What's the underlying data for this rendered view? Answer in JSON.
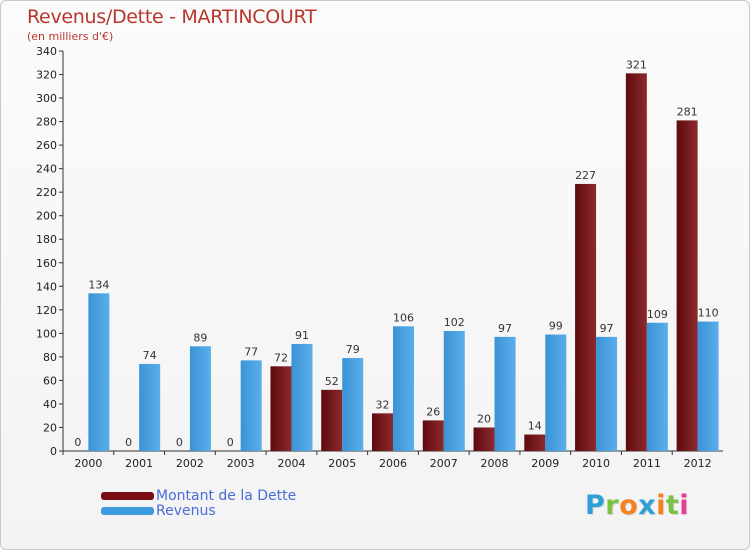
{
  "title": "Revenus/Dette - MARTINCOURT",
  "subtitle": "(en milliers d'€)",
  "legend": {
    "debt_label": "Montant de la Dette",
    "revenue_label": "Revenus"
  },
  "logo": {
    "text": "Proxiti",
    "colors": [
      "#2f9fd8",
      "#7cc242",
      "#f58220",
      "#2f9fd8",
      "#f58220",
      "#7cc242",
      "#e63c96"
    ]
  },
  "colors": {
    "debt": "#7a0d12",
    "revenue": "#3d9be0",
    "title": "#b8372c"
  },
  "chart_data": {
    "type": "bar",
    "categories": [
      "2000",
      "2001",
      "2002",
      "2003",
      "2004",
      "2005",
      "2006",
      "2007",
      "2008",
      "2009",
      "2010",
      "2011",
      "2012"
    ],
    "series": [
      {
        "name": "Montant de la Dette",
        "values": [
          0,
          0,
          0,
          0,
          72,
          52,
          32,
          26,
          20,
          14,
          227,
          321,
          281
        ]
      },
      {
        "name": "Revenus",
        "values": [
          134,
          74,
          89,
          77,
          91,
          79,
          106,
          102,
          97,
          99,
          97,
          109,
          110
        ]
      }
    ],
    "ylim": [
      0,
      340
    ],
    "yticks": [
      0,
      20,
      40,
      60,
      80,
      100,
      120,
      140,
      160,
      180,
      200,
      220,
      240,
      260,
      280,
      300,
      320,
      340
    ],
    "grid": false,
    "legend": "bottom-left"
  }
}
